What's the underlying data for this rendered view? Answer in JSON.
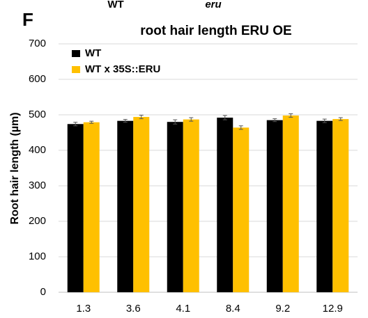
{
  "panel_label": "F",
  "top_labels": [
    "WT",
    "eru"
  ],
  "chart_data": {
    "type": "bar",
    "title": "root hair length ERU OE",
    "y_label": "Root hair length (µm)",
    "categories": [
      "1.3",
      "3.6",
      "4.1",
      "8.4",
      "9.2",
      "12.9"
    ],
    "series": [
      {
        "name": "WT",
        "color": "#000000",
        "values": [
          474,
          483,
          480,
          492,
          485,
          483
        ],
        "errors": [
          5,
          4,
          6,
          6,
          4,
          5
        ]
      },
      {
        "name": "WT x 35S::ERU",
        "color": "#ffc000",
        "values": [
          479,
          494,
          487,
          464,
          498,
          488
        ],
        "errors": [
          3,
          5,
          5,
          5,
          5,
          4
        ]
      }
    ],
    "ylim": [
      0,
      700
    ],
    "yticks": [
      0,
      100,
      200,
      300,
      400,
      500,
      600,
      700
    ],
    "grid": true,
    "legend": "upper left"
  }
}
